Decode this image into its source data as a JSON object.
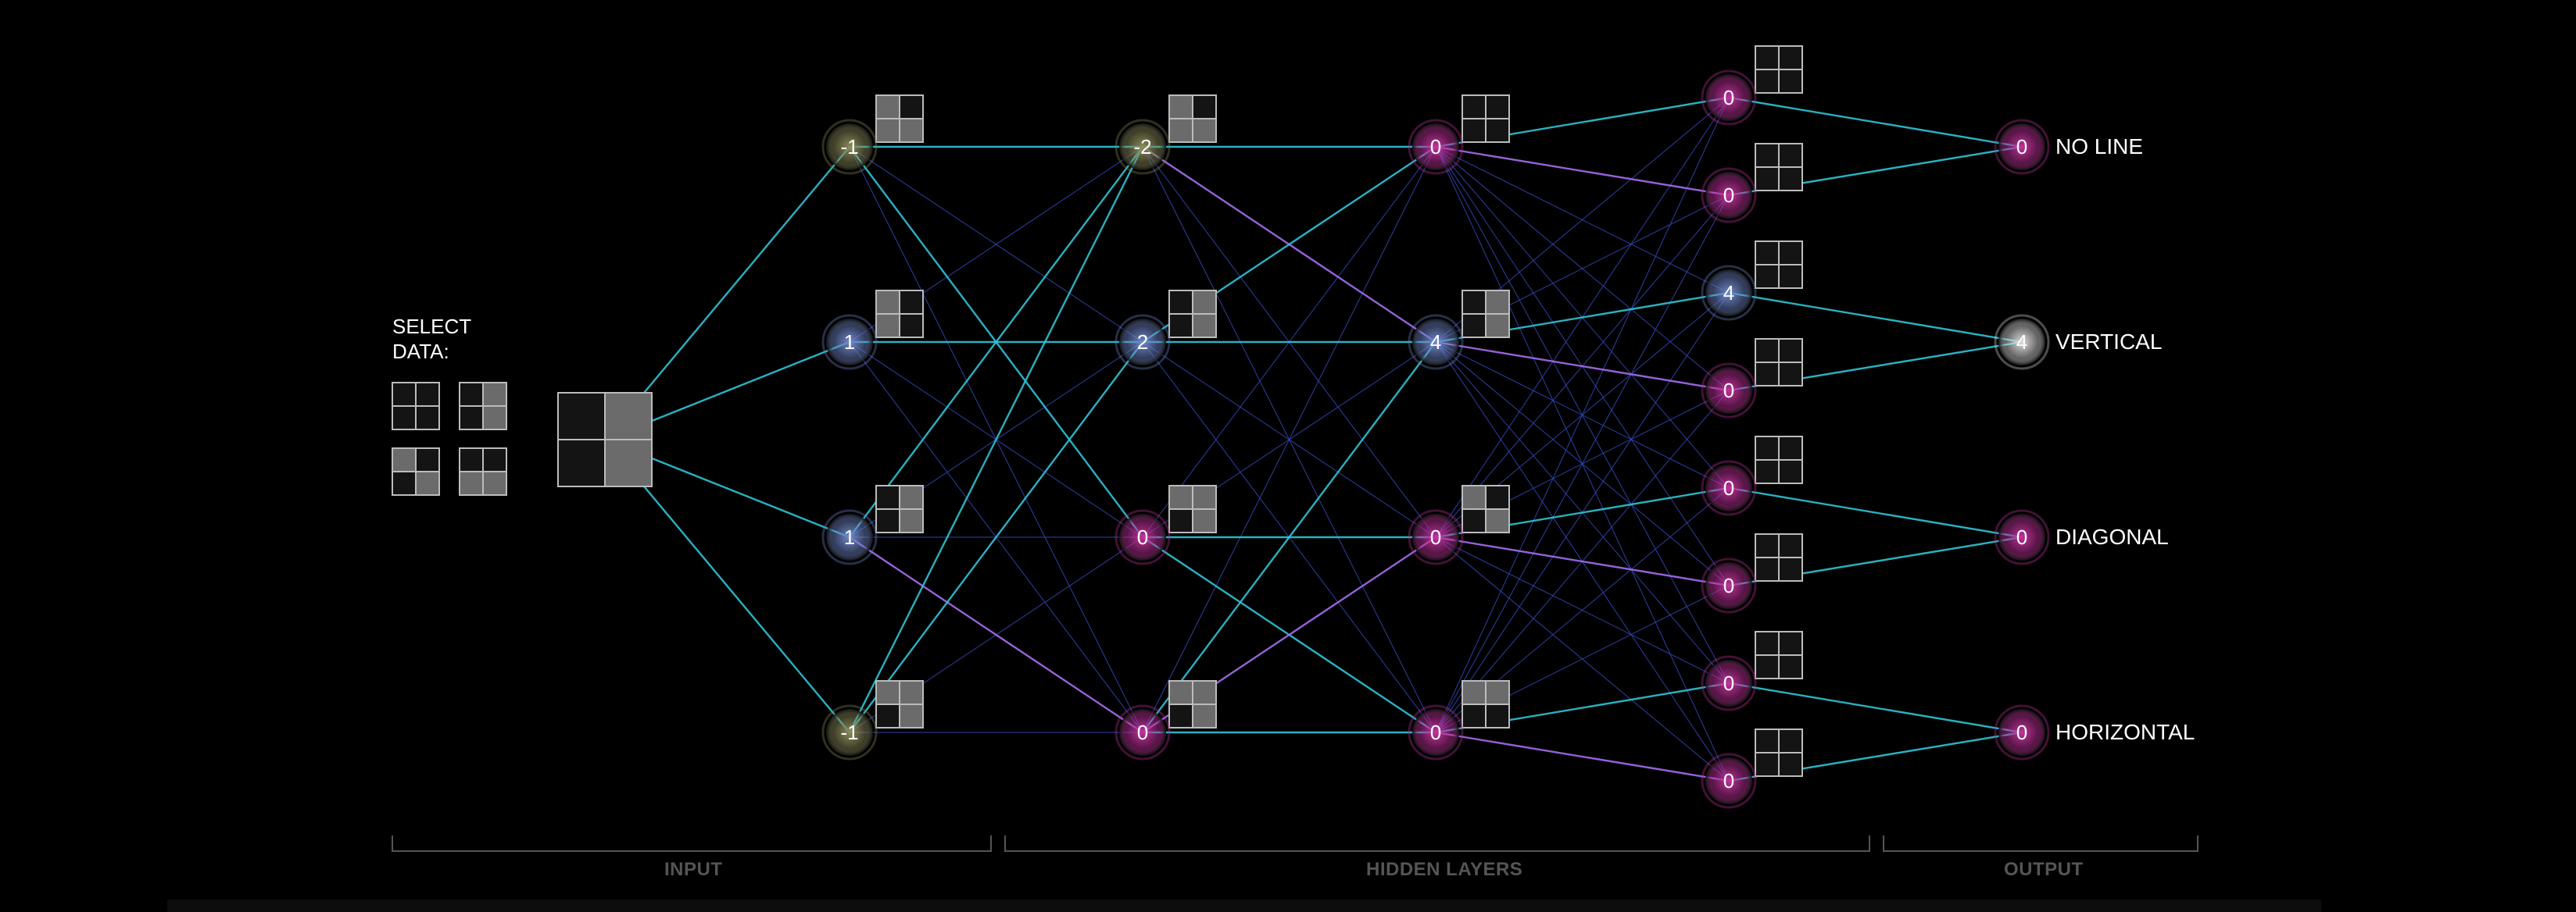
{
  "select_data": {
    "label": "SELECT DATA:",
    "options": [
      {
        "name": "no-line",
        "pattern": [
          0,
          0,
          0,
          0
        ]
      },
      {
        "name": "vertical",
        "pattern": [
          0,
          1,
          0,
          1
        ]
      },
      {
        "name": "diagonal",
        "pattern": [
          1,
          0,
          0,
          1
        ]
      },
      {
        "name": "horizontal",
        "pattern": [
          0,
          0,
          1,
          1
        ]
      }
    ],
    "selected_pattern": [
      0,
      1,
      0,
      1
    ]
  },
  "sections": {
    "input": "INPUT",
    "hidden": "HIDDEN LAYERS",
    "output": "OUTPUT"
  },
  "layers": [
    {
      "kind": "hidden",
      "nodes": [
        {
          "value": "-1",
          "tone": "olive",
          "pattern": [
            1,
            0,
            1,
            1
          ]
        },
        {
          "value": "1",
          "tone": "blue",
          "pattern": [
            1,
            0,
            1,
            0
          ]
        },
        {
          "value": "1",
          "tone": "blue",
          "pattern": [
            0,
            1,
            0,
            1
          ]
        },
        {
          "value": "-1",
          "tone": "olive",
          "pattern": [
            1,
            1,
            0,
            1
          ]
        }
      ]
    },
    {
      "kind": "hidden",
      "nodes": [
        {
          "value": "-2",
          "tone": "olive",
          "pattern": [
            1,
            0,
            1,
            1
          ]
        },
        {
          "value": "2",
          "tone": "blue",
          "pattern": [
            0,
            1,
            0,
            1
          ]
        },
        {
          "value": "0",
          "tone": "pink",
          "pattern": [
            1,
            1,
            0,
            1
          ]
        },
        {
          "value": "0",
          "tone": "pink",
          "pattern": [
            1,
            1,
            0,
            1
          ]
        }
      ]
    },
    {
      "kind": "hidden",
      "nodes": [
        {
          "value": "0",
          "tone": "pink",
          "pattern": [
            0,
            0,
            0,
            0
          ]
        },
        {
          "value": "4",
          "tone": "blue",
          "pattern": [
            0,
            1,
            0,
            1
          ]
        },
        {
          "value": "0",
          "tone": "pink",
          "pattern": [
            1,
            0,
            0,
            1
          ]
        },
        {
          "value": "0",
          "tone": "pink",
          "pattern": [
            1,
            1,
            0,
            0
          ]
        }
      ]
    },
    {
      "kind": "hidden",
      "nodes": [
        {
          "value": "0",
          "tone": "pink",
          "pattern": [
            0,
            0,
            0,
            0
          ]
        },
        {
          "value": "0",
          "tone": "pink",
          "pattern": [
            0,
            0,
            0,
            0
          ]
        },
        {
          "value": "4",
          "tone": "blue",
          "pattern": [
            0,
            0,
            0,
            0
          ]
        },
        {
          "value": "0",
          "tone": "pink",
          "pattern": [
            0,
            0,
            0,
            0
          ]
        },
        {
          "value": "0",
          "tone": "pink",
          "pattern": [
            0,
            0,
            0,
            0
          ]
        },
        {
          "value": "0",
          "tone": "pink",
          "pattern": [
            0,
            0,
            0,
            0
          ]
        },
        {
          "value": "0",
          "tone": "pink",
          "pattern": [
            0,
            0,
            0,
            0
          ]
        },
        {
          "value": "0",
          "tone": "pink",
          "pattern": [
            0,
            0,
            0,
            0
          ]
        }
      ]
    },
    {
      "kind": "output",
      "nodes": [
        {
          "value": "0",
          "tone": "pink",
          "label": "NO LINE"
        },
        {
          "value": "4",
          "tone": "white",
          "label": "VERTICAL"
        },
        {
          "value": "0",
          "tone": "pink",
          "label": "DIAGONAL"
        },
        {
          "value": "0",
          "tone": "pink",
          "label": "HORIZONTAL"
        }
      ]
    }
  ],
  "colors": {
    "positive": "#2ec4d6",
    "negative": "#a56cf0",
    "weak": "#3448b8",
    "olive": "#8a8a5a",
    "blue": "#6f86c8",
    "pink": "#c0309a",
    "white": "#dcdcdc"
  }
}
